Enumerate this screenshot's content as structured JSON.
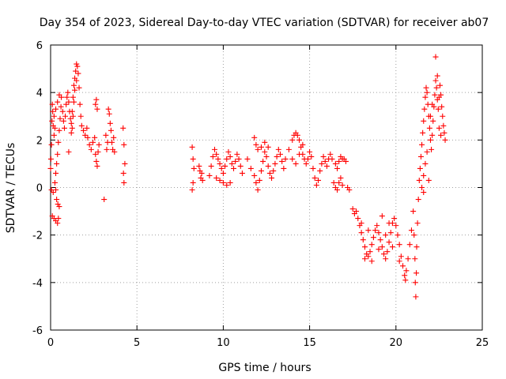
{
  "chart_data": {
    "type": "scatter",
    "title": "Day 354 of 2023, Sidereal Day-to-day VTEC variation (SDTVAR) for receiver ab07",
    "xlabel": "GPS time / hours",
    "ylabel": "SDTVAR / TECUs",
    "xlim": [
      0,
      25
    ],
    "ylim": [
      -6,
      6
    ],
    "xticks": [
      0,
      5,
      10,
      15,
      20,
      25
    ],
    "yticks": [
      -6,
      -4,
      -2,
      0,
      2,
      4,
      6
    ],
    "xtick_labels": [
      "0",
      "5",
      "10",
      "15",
      "20",
      "25"
    ],
    "ytick_labels": [
      "-6",
      "-4",
      "-2",
      "0",
      "2",
      "4",
      "6"
    ],
    "grid": true,
    "marker": "+",
    "color": "#ff0000",
    "series": [
      {
        "name": "SDTVAR",
        "points": [
          [
            0.0,
            0.8
          ],
          [
            0.02,
            1.2
          ],
          [
            0.05,
            1.8
          ],
          [
            0.08,
            2.8
          ],
          [
            0.1,
            3.5
          ],
          [
            0.12,
            3.2
          ],
          [
            0.15,
            2.6
          ],
          [
            0.05,
            -0.1
          ],
          [
            0.1,
            -1.2
          ],
          [
            0.2,
            -1.3
          ],
          [
            0.3,
            -1.4
          ],
          [
            0.4,
            -1.5
          ],
          [
            0.45,
            -1.3
          ],
          [
            0.15,
            -0.2
          ],
          [
            0.25,
            0.2
          ],
          [
            0.3,
            0.6
          ],
          [
            0.35,
            1.0
          ],
          [
            0.4,
            1.4
          ],
          [
            0.45,
            1.9
          ],
          [
            0.5,
            2.4
          ],
          [
            0.55,
            2.9
          ],
          [
            0.6,
            3.4
          ],
          [
            0.62,
            3.8
          ],
          [
            0.5,
            3.9
          ],
          [
            0.4,
            3.6
          ],
          [
            0.3,
            3.3
          ],
          [
            0.2,
            3.0
          ],
          [
            0.35,
            -0.5
          ],
          [
            0.42,
            -0.7
          ],
          [
            0.5,
            -0.8
          ],
          [
            0.3,
            -0.1
          ],
          [
            0.25,
            2.5
          ],
          [
            0.2,
            2.2
          ],
          [
            0.7,
            3.2
          ],
          [
            0.75,
            2.8
          ],
          [
            0.8,
            2.5
          ],
          [
            0.85,
            3.0
          ],
          [
            0.9,
            3.5
          ],
          [
            0.95,
            3.8
          ],
          [
            1.0,
            4.0
          ],
          [
            1.05,
            3.6
          ],
          [
            1.1,
            3.2
          ],
          [
            1.15,
            2.9
          ],
          [
            1.2,
            2.7
          ],
          [
            1.25,
            3.2
          ],
          [
            1.3,
            3.8
          ],
          [
            1.35,
            4.3
          ],
          [
            1.4,
            4.6
          ],
          [
            1.45,
            4.9
          ],
          [
            1.5,
            5.2
          ],
          [
            1.55,
            5.1
          ],
          [
            1.6,
            4.8
          ],
          [
            1.65,
            4.2
          ],
          [
            1.5,
            4.5
          ],
          [
            1.4,
            4.1
          ],
          [
            1.35,
            3.6
          ],
          [
            1.3,
            3.0
          ],
          [
            1.25,
            2.5
          ],
          [
            1.2,
            2.3
          ],
          [
            1.7,
            3.5
          ],
          [
            1.75,
            3.0
          ],
          [
            1.8,
            2.6
          ],
          [
            1.9,
            2.4
          ],
          [
            2.0,
            2.2
          ],
          [
            2.1,
            2.5
          ],
          [
            2.15,
            2.1
          ],
          [
            2.25,
            1.8
          ],
          [
            2.35,
            1.6
          ],
          [
            2.45,
            1.9
          ],
          [
            2.55,
            2.1
          ],
          [
            2.6,
            1.4
          ],
          [
            2.65,
            1.1
          ],
          [
            2.7,
            0.9
          ],
          [
            2.75,
            1.5
          ],
          [
            2.8,
            1.8
          ],
          [
            2.6,
            3.5
          ],
          [
            2.65,
            3.7
          ],
          [
            2.7,
            3.3
          ],
          [
            1.05,
            1.5
          ],
          [
            3.2,
            2.2
          ],
          [
            3.25,
            1.6
          ],
          [
            3.3,
            1.9
          ],
          [
            3.35,
            3.3
          ],
          [
            3.4,
            3.1
          ],
          [
            3.45,
            2.7
          ],
          [
            3.5,
            2.4
          ],
          [
            3.55,
            1.9
          ],
          [
            3.6,
            1.6
          ],
          [
            3.65,
            2.1
          ],
          [
            3.7,
            1.5
          ],
          [
            3.1,
            -0.5
          ],
          [
            4.2,
            2.5
          ],
          [
            4.25,
            1.8
          ],
          [
            4.3,
            1.0
          ],
          [
            4.22,
            0.6
          ],
          [
            4.25,
            0.2
          ],
          [
            8.2,
            1.7
          ],
          [
            8.25,
            1.2
          ],
          [
            8.3,
            0.8
          ],
          [
            8.25,
            0.2
          ],
          [
            8.2,
            -0.1
          ],
          [
            8.6,
            0.9
          ],
          [
            8.65,
            0.7
          ],
          [
            8.7,
            0.4
          ],
          [
            8.75,
            0.6
          ],
          [
            8.8,
            0.3
          ],
          [
            9.2,
            0.5
          ],
          [
            9.3,
            0.9
          ],
          [
            9.4,
            1.3
          ],
          [
            9.5,
            1.6
          ],
          [
            9.6,
            1.4
          ],
          [
            9.7,
            1.2
          ],
          [
            9.8,
            1.0
          ],
          [
            9.9,
            0.8
          ],
          [
            10.0,
            0.6
          ],
          [
            10.1,
            0.9
          ],
          [
            10.2,
            1.2
          ],
          [
            10.3,
            1.5
          ],
          [
            10.4,
            1.3
          ],
          [
            10.5,
            1.0
          ],
          [
            10.6,
            0.8
          ],
          [
            10.7,
            1.1
          ],
          [
            10.8,
            1.4
          ],
          [
            10.9,
            1.2
          ],
          [
            11.0,
            0.9
          ],
          [
            11.1,
            0.6
          ],
          [
            9.6,
            0.4
          ],
          [
            9.8,
            0.3
          ],
          [
            10.0,
            0.2
          ],
          [
            10.2,
            0.1
          ],
          [
            10.4,
            0.2
          ],
          [
            11.4,
            1.2
          ],
          [
            11.6,
            0.8
          ],
          [
            11.8,
            0.5
          ],
          [
            11.9,
            0.2
          ],
          [
            12.0,
            -0.1
          ],
          [
            12.1,
            0.3
          ],
          [
            12.2,
            0.7
          ],
          [
            12.3,
            1.1
          ],
          [
            12.4,
            1.5
          ],
          [
            12.5,
            1.3
          ],
          [
            12.6,
            0.9
          ],
          [
            12.7,
            0.6
          ],
          [
            12.8,
            0.4
          ],
          [
            12.9,
            0.7
          ],
          [
            13.0,
            1.0
          ],
          [
            13.1,
            1.3
          ],
          [
            13.2,
            1.6
          ],
          [
            13.3,
            1.4
          ],
          [
            13.4,
            1.1
          ],
          [
            13.5,
            0.8
          ],
          [
            11.8,
            2.1
          ],
          [
            11.9,
            1.8
          ],
          [
            12.0,
            1.6
          ],
          [
            12.2,
            1.7
          ],
          [
            12.4,
            1.9
          ],
          [
            12.6,
            1.7
          ],
          [
            13.6,
            1.2
          ],
          [
            13.8,
            1.6
          ],
          [
            14.0,
            2.0
          ],
          [
            14.1,
            2.2
          ],
          [
            14.2,
            2.3
          ],
          [
            14.3,
            2.2
          ],
          [
            14.4,
            2.0
          ],
          [
            14.5,
            1.7
          ],
          [
            14.6,
            1.4
          ],
          [
            14.7,
            1.2
          ],
          [
            14.8,
            1.0
          ],
          [
            14.9,
            1.2
          ],
          [
            15.0,
            1.5
          ],
          [
            15.1,
            1.3
          ],
          [
            14.0,
            1.2
          ],
          [
            14.2,
            1.0
          ],
          [
            14.4,
            1.4
          ],
          [
            14.6,
            1.8
          ],
          [
            15.2,
            0.8
          ],
          [
            15.3,
            0.4
          ],
          [
            15.4,
            0.1
          ],
          [
            15.5,
            0.3
          ],
          [
            15.6,
            0.7
          ],
          [
            15.7,
            1.0
          ],
          [
            15.8,
            1.3
          ],
          [
            15.9,
            1.1
          ],
          [
            16.0,
            0.9
          ],
          [
            16.1,
            1.2
          ],
          [
            16.2,
            1.4
          ],
          [
            16.3,
            1.2
          ],
          [
            16.5,
            1.0
          ],
          [
            16.6,
            0.8
          ],
          [
            16.7,
            1.1
          ],
          [
            16.8,
            1.3
          ],
          [
            16.9,
            1.2
          ],
          [
            17.0,
            1.2
          ],
          [
            17.1,
            1.1
          ],
          [
            16.4,
            0.2
          ],
          [
            16.5,
            0.0
          ],
          [
            16.6,
            -0.1
          ],
          [
            16.7,
            0.2
          ],
          [
            16.8,
            0.4
          ],
          [
            16.9,
            0.1
          ],
          [
            17.2,
            0.0
          ],
          [
            17.3,
            -0.1
          ],
          [
            17.5,
            -0.9
          ],
          [
            17.6,
            -1.1
          ],
          [
            17.7,
            -1.0
          ],
          [
            17.8,
            -1.3
          ],
          [
            17.9,
            -1.6
          ],
          [
            18.0,
            -1.9
          ],
          [
            18.1,
            -2.2
          ],
          [
            18.2,
            -2.5
          ],
          [
            18.3,
            -2.8
          ],
          [
            18.4,
            -2.9
          ],
          [
            18.5,
            -2.7
          ],
          [
            18.6,
            -2.4
          ],
          [
            18.7,
            -2.1
          ],
          [
            18.8,
            -1.8
          ],
          [
            18.9,
            -1.6
          ],
          [
            19.0,
            -1.9
          ],
          [
            19.1,
            -2.2
          ],
          [
            19.2,
            -2.5
          ],
          [
            19.3,
            -2.8
          ],
          [
            19.4,
            -3.0
          ],
          [
            19.5,
            -2.7
          ],
          [
            19.6,
            -2.3
          ],
          [
            19.7,
            -1.9
          ],
          [
            19.8,
            -1.5
          ],
          [
            19.9,
            -1.3
          ],
          [
            20.0,
            -1.6
          ],
          [
            20.1,
            -2.0
          ],
          [
            20.2,
            -2.4
          ],
          [
            20.3,
            -2.9
          ],
          [
            20.4,
            -3.3
          ],
          [
            20.5,
            -3.7
          ],
          [
            20.55,
            -3.9
          ],
          [
            20.6,
            -3.5
          ],
          [
            20.7,
            -3.0
          ],
          [
            20.8,
            -2.4
          ],
          [
            20.9,
            -1.8
          ],
          [
            18.2,
            -3.0
          ],
          [
            18.6,
            -3.1
          ],
          [
            19.0,
            -2.6
          ],
          [
            19.4,
            -2.0
          ],
          [
            19.8,
            -2.5
          ],
          [
            20.2,
            -3.1
          ],
          [
            18.0,
            -1.5
          ],
          [
            18.4,
            -1.8
          ],
          [
            19.2,
            -1.2
          ],
          [
            19.6,
            -1.5
          ],
          [
            21.0,
            -1.0
          ],
          [
            21.05,
            -2.0
          ],
          [
            21.1,
            -3.0
          ],
          [
            21.12,
            -4.0
          ],
          [
            21.15,
            -4.6
          ],
          [
            21.18,
            -3.6
          ],
          [
            21.2,
            -2.5
          ],
          [
            21.25,
            -1.5
          ],
          [
            21.3,
            -0.5
          ],
          [
            21.35,
            0.3
          ],
          [
            21.4,
            0.8
          ],
          [
            21.45,
            1.3
          ],
          [
            21.5,
            1.8
          ],
          [
            21.55,
            2.3
          ],
          [
            21.6,
            2.8
          ],
          [
            21.65,
            3.3
          ],
          [
            21.7,
            3.8
          ],
          [
            21.75,
            4.2
          ],
          [
            21.8,
            4.0
          ],
          [
            21.85,
            3.5
          ],
          [
            21.9,
            3.0
          ],
          [
            21.95,
            2.5
          ],
          [
            22.0,
            2.0
          ],
          [
            22.05,
            1.6
          ],
          [
            22.1,
            2.2
          ],
          [
            22.15,
            2.8
          ],
          [
            22.2,
            3.4
          ],
          [
            22.25,
            3.9
          ],
          [
            22.3,
            4.5
          ],
          [
            22.35,
            4.2
          ],
          [
            22.4,
            3.7
          ],
          [
            22.45,
            3.3
          ],
          [
            22.5,
            3.8
          ],
          [
            22.55,
            4.3
          ],
          [
            22.6,
            3.9
          ],
          [
            22.65,
            3.4
          ],
          [
            22.7,
            3.0
          ],
          [
            22.75,
            2.6
          ],
          [
            22.8,
            2.3
          ],
          [
            22.85,
            2.0
          ],
          [
            21.5,
            0.0
          ],
          [
            21.6,
            0.5
          ],
          [
            21.7,
            1.0
          ],
          [
            21.8,
            1.5
          ],
          [
            21.9,
            0.3
          ],
          [
            21.6,
            -0.2
          ],
          [
            22.0,
            3.0
          ],
          [
            22.1,
            3.5
          ],
          [
            22.3,
            5.5
          ],
          [
            22.4,
            4.7
          ],
          [
            22.5,
            2.5
          ],
          [
            22.6,
            2.2
          ]
        ]
      }
    ]
  }
}
